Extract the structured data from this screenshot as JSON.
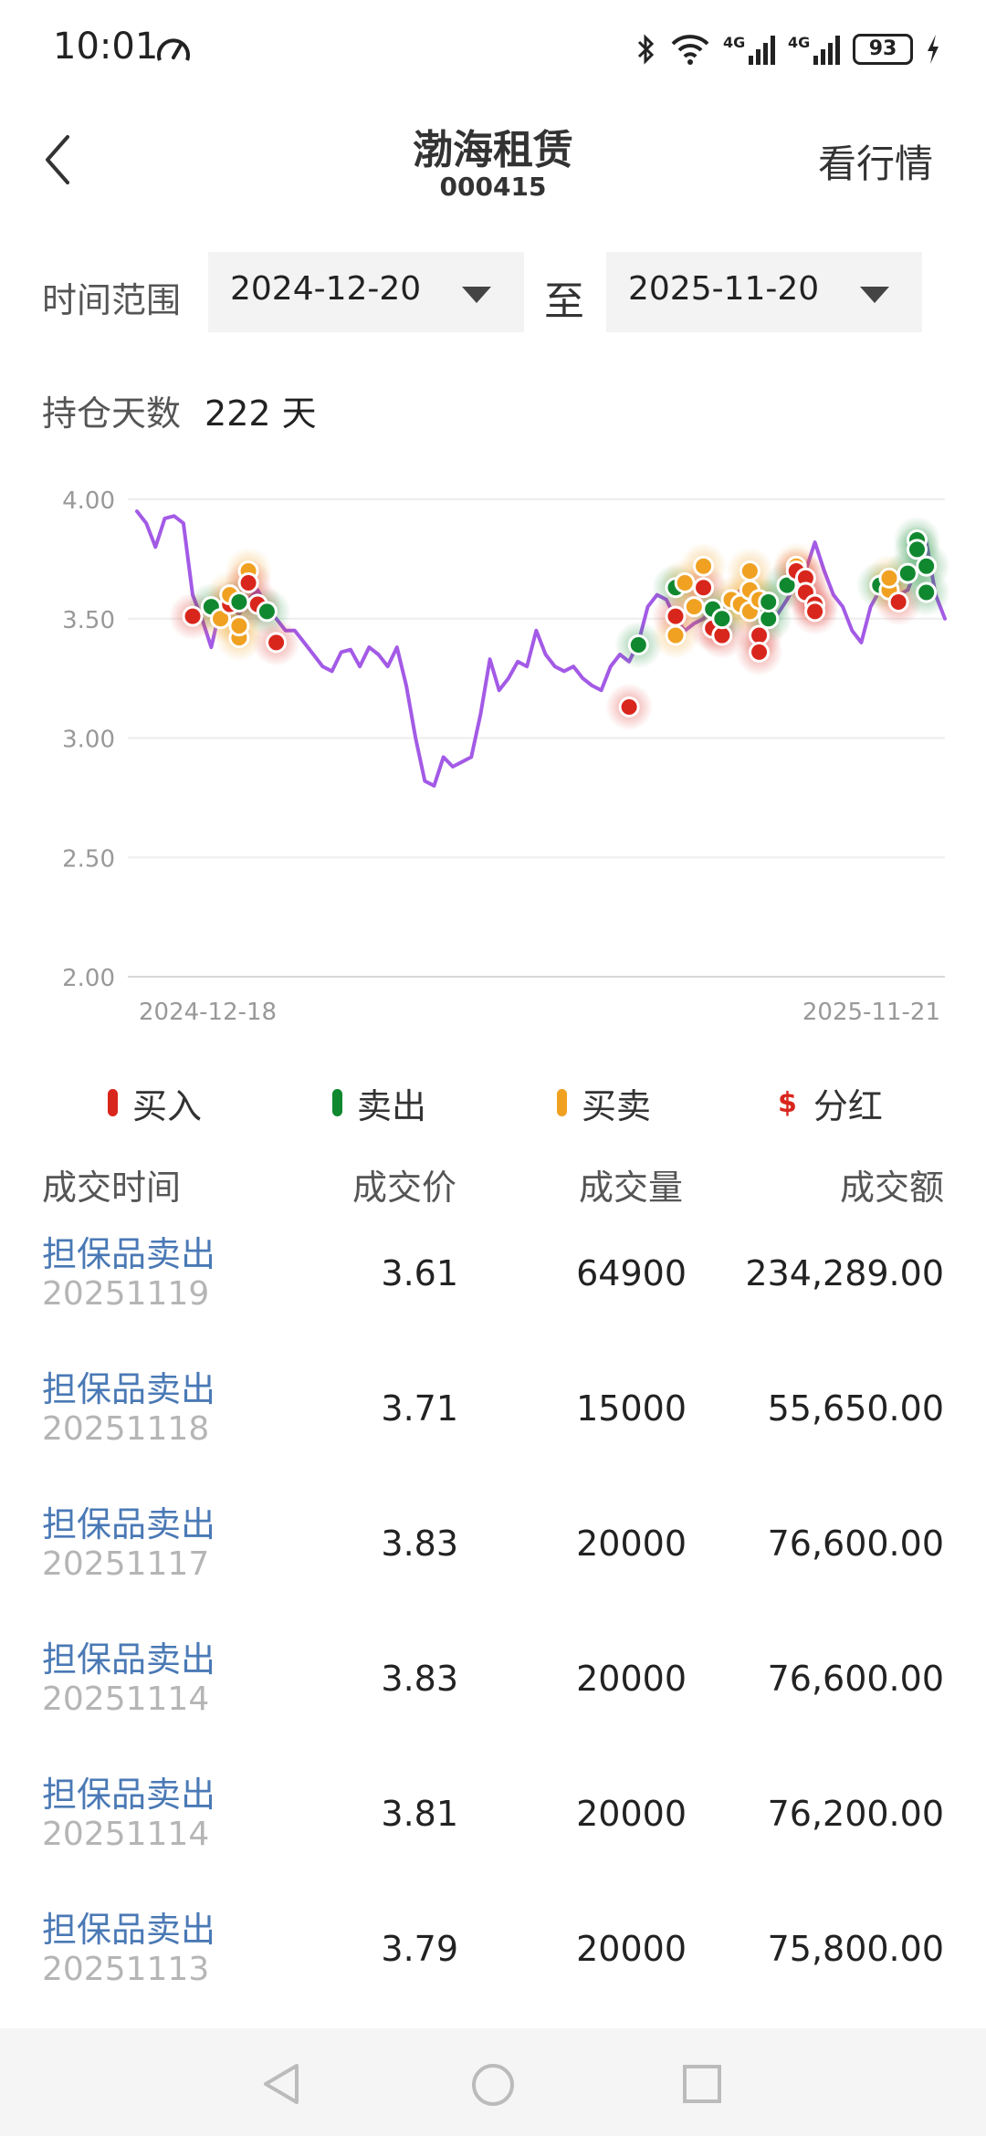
{
  "status_bar": {
    "time": "10:01",
    "battery": "93",
    "sig1": "4G",
    "sig2": "4G"
  },
  "header": {
    "title": "渤海租赁",
    "code": "000415",
    "market_button": "看行情"
  },
  "range": {
    "label": "时间范围",
    "start": "2024-12-20",
    "to": "至",
    "end": "2025-11-20"
  },
  "hold": {
    "label": "持仓天数",
    "value": "222 天"
  },
  "legend": {
    "buy": "买入",
    "sell": "卖出",
    "both": "买卖",
    "dividend_symbol": "$",
    "dividend": "分红"
  },
  "colors": {
    "line": "#a35ae6",
    "buy": "#d9261c",
    "sell": "#10882f",
    "both": "#f0a121",
    "link": "#4a79b5"
  },
  "table": {
    "headers": [
      "成交时间",
      "成交价",
      "成交量",
      "成交额"
    ],
    "rows": [
      {
        "type": "担保品卖出",
        "date": "20251119",
        "price": "3.61",
        "qty": "64900",
        "amount": "234,289.00"
      },
      {
        "type": "担保品卖出",
        "date": "20251118",
        "price": "3.71",
        "qty": "15000",
        "amount": "55,650.00"
      },
      {
        "type": "担保品卖出",
        "date": "20251117",
        "price": "3.83",
        "qty": "20000",
        "amount": "76,600.00"
      },
      {
        "type": "担保品卖出",
        "date": "20251114",
        "price": "3.83",
        "qty": "20000",
        "amount": "76,600.00"
      },
      {
        "type": "担保品卖出",
        "date": "20251114",
        "price": "3.81",
        "qty": "20000",
        "amount": "76,200.00"
      },
      {
        "type": "担保品卖出",
        "date": "20251113",
        "price": "3.79",
        "qty": "20000",
        "amount": "75,800.00"
      }
    ]
  },
  "chart_data": {
    "type": "line",
    "x_labels": [
      "2024-12-18",
      "2025-11-21"
    ],
    "y_ticks": [
      "4.00",
      "3.50",
      "3.00",
      "2.50",
      "2.00"
    ],
    "ylim": [
      2.0,
      4.0
    ],
    "grid": true,
    "price_series": [
      3.95,
      3.9,
      3.8,
      3.92,
      3.93,
      3.9,
      3.6,
      3.5,
      3.38,
      3.55,
      3.55,
      3.52,
      3.58,
      3.62,
      3.55,
      3.5,
      3.45,
      3.45,
      3.4,
      3.35,
      3.3,
      3.28,
      3.36,
      3.37,
      3.3,
      3.38,
      3.35,
      3.3,
      3.38,
      3.22,
      3.0,
      2.82,
      2.8,
      2.92,
      2.88,
      2.9,
      2.92,
      3.1,
      3.33,
      3.2,
      3.25,
      3.32,
      3.3,
      3.45,
      3.35,
      3.3,
      3.28,
      3.3,
      3.25,
      3.22,
      3.2,
      3.3,
      3.35,
      3.32,
      3.4,
      3.55,
      3.6,
      3.58,
      3.5,
      3.45,
      3.48,
      3.5,
      3.55,
      3.52,
      3.58,
      3.62,
      3.55,
      3.5,
      3.48,
      3.52,
      3.58,
      3.65,
      3.7,
      3.82,
      3.7,
      3.6,
      3.55,
      3.45,
      3.4,
      3.55,
      3.62,
      3.65,
      3.6,
      3.62,
      3.72,
      3.82,
      3.6,
      3.5
    ],
    "trades": [
      {
        "i": 6,
        "y": 3.51,
        "t": "buy"
      },
      {
        "i": 8,
        "y": 3.55,
        "t": "sell"
      },
      {
        "i": 9,
        "y": 3.5,
        "t": "both"
      },
      {
        "i": 10,
        "y": 3.56,
        "t": "buy"
      },
      {
        "i": 10,
        "y": 3.6,
        "t": "both"
      },
      {
        "i": 11,
        "y": 3.42,
        "t": "both"
      },
      {
        "i": 11,
        "y": 3.47,
        "t": "both"
      },
      {
        "i": 11,
        "y": 3.57,
        "t": "sell"
      },
      {
        "i": 12,
        "y": 3.7,
        "t": "both"
      },
      {
        "i": 12,
        "y": 3.65,
        "t": "buy"
      },
      {
        "i": 13,
        "y": 3.56,
        "t": "buy"
      },
      {
        "i": 14,
        "y": 3.53,
        "t": "sell"
      },
      {
        "i": 15,
        "y": 3.4,
        "t": "buy"
      },
      {
        "i": 53,
        "y": 3.13,
        "t": "buy"
      },
      {
        "i": 54,
        "y": 3.39,
        "t": "sell"
      },
      {
        "i": 58,
        "y": 3.63,
        "t": "sell"
      },
      {
        "i": 58,
        "y": 3.51,
        "t": "buy"
      },
      {
        "i": 58,
        "y": 3.43,
        "t": "both"
      },
      {
        "i": 59,
        "y": 3.65,
        "t": "both"
      },
      {
        "i": 60,
        "y": 3.55,
        "t": "both"
      },
      {
        "i": 61,
        "y": 3.72,
        "t": "both"
      },
      {
        "i": 61,
        "y": 3.63,
        "t": "buy"
      },
      {
        "i": 62,
        "y": 3.54,
        "t": "sell"
      },
      {
        "i": 62,
        "y": 3.46,
        "t": "buy"
      },
      {
        "i": 63,
        "y": 3.43,
        "t": "buy"
      },
      {
        "i": 63,
        "y": 3.5,
        "t": "sell"
      },
      {
        "i": 64,
        "y": 3.58,
        "t": "both"
      },
      {
        "i": 65,
        "y": 3.56,
        "t": "both"
      },
      {
        "i": 66,
        "y": 3.7,
        "t": "both"
      },
      {
        "i": 66,
        "y": 3.62,
        "t": "both"
      },
      {
        "i": 66,
        "y": 3.53,
        "t": "both"
      },
      {
        "i": 67,
        "y": 3.58,
        "t": "both"
      },
      {
        "i": 67,
        "y": 3.43,
        "t": "buy"
      },
      {
        "i": 67,
        "y": 3.36,
        "t": "buy"
      },
      {
        "i": 68,
        "y": 3.5,
        "t": "sell"
      },
      {
        "i": 68,
        "y": 3.57,
        "t": "sell"
      },
      {
        "i": 70,
        "y": 3.64,
        "t": "sell"
      },
      {
        "i": 71,
        "y": 3.72,
        "t": "both"
      },
      {
        "i": 71,
        "y": 3.7,
        "t": "buy"
      },
      {
        "i": 72,
        "y": 3.67,
        "t": "buy"
      },
      {
        "i": 72,
        "y": 3.61,
        "t": "buy"
      },
      {
        "i": 73,
        "y": 3.56,
        "t": "buy"
      },
      {
        "i": 73,
        "y": 3.53,
        "t": "buy"
      },
      {
        "i": 80,
        "y": 3.64,
        "t": "sell"
      },
      {
        "i": 81,
        "y": 3.62,
        "t": "both"
      },
      {
        "i": 81,
        "y": 3.67,
        "t": "both"
      },
      {
        "i": 82,
        "y": 3.57,
        "t": "buy"
      },
      {
        "i": 83,
        "y": 3.69,
        "t": "sell"
      },
      {
        "i": 84,
        "y": 3.83,
        "t": "sell"
      },
      {
        "i": 84,
        "y": 3.79,
        "t": "sell"
      },
      {
        "i": 85,
        "y": 3.72,
        "t": "sell"
      },
      {
        "i": 85,
        "y": 3.61,
        "t": "sell"
      }
    ]
  }
}
